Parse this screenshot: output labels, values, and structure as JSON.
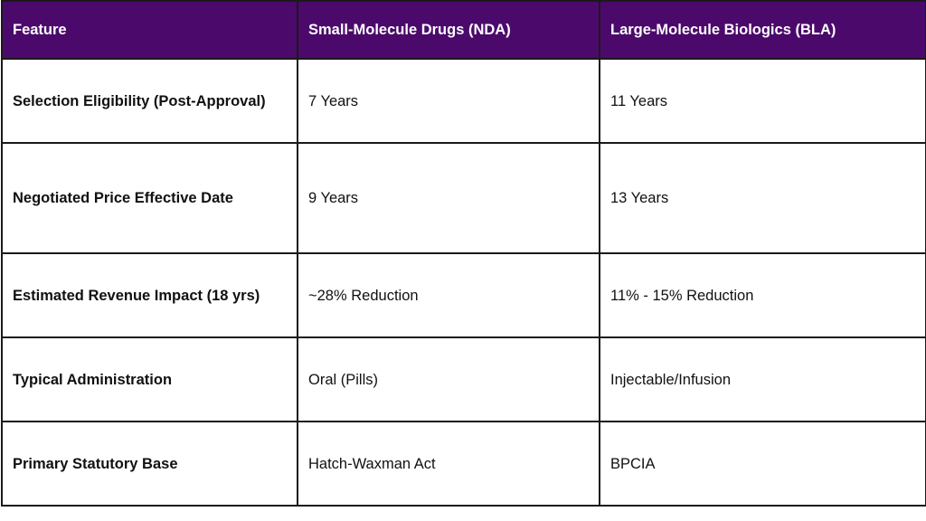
{
  "table": {
    "headers": [
      "Feature",
      "Small-Molecule Drugs (NDA)",
      "Large-Molecule Biologics (BLA)"
    ],
    "rows": [
      {
        "feature": "Selection Eligibility (Post-Approval)",
        "small_molecule": "7 Years",
        "biologics": "11 Years"
      },
      {
        "feature": "Negotiated Price Effective Date",
        "small_molecule": "9 Years",
        "biologics": "13 Years"
      },
      {
        "feature": "Estimated Revenue Impact (18 yrs)",
        "small_molecule": "~28% Reduction",
        "biologics": "11% - 15% Reduction"
      },
      {
        "feature": "Typical Administration",
        "small_molecule": "Oral (Pills)",
        "biologics": "Injectable/Infusion"
      },
      {
        "feature": "Primary Statutory Base",
        "small_molecule": "Hatch-Waxman Act",
        "biologics": "BPCIA"
      }
    ]
  },
  "colors": {
    "header_background": "#4b0a6b",
    "header_text": "#ffffff",
    "border": "#1a1a1a",
    "body_text": "#111111"
  }
}
